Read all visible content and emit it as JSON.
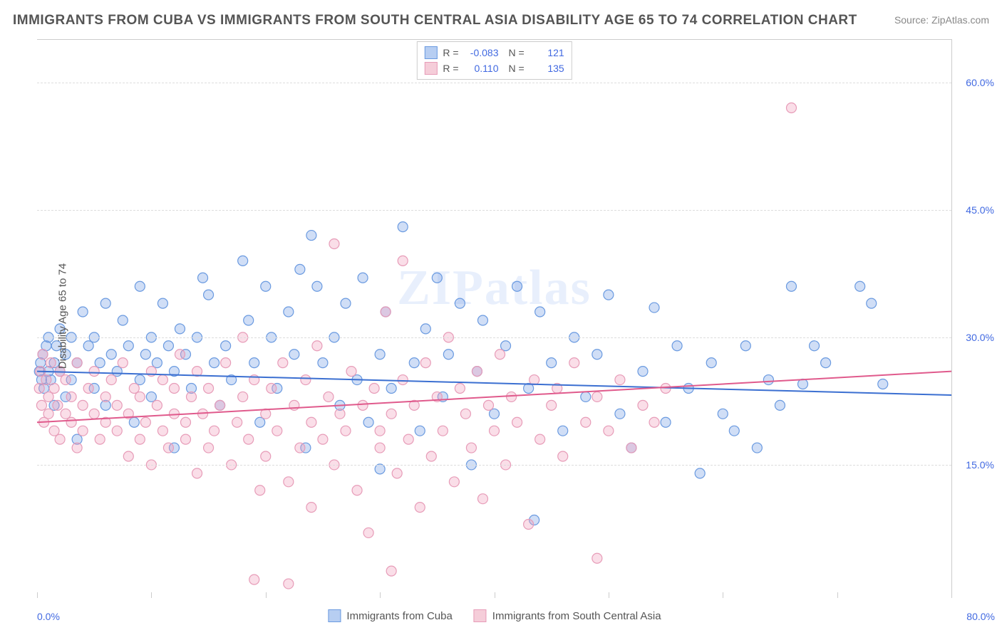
{
  "title": "IMMIGRANTS FROM CUBA VS IMMIGRANTS FROM SOUTH CENTRAL ASIA DISABILITY AGE 65 TO 74 CORRELATION CHART",
  "source": "Source: ZipAtlas.com",
  "watermark": "ZIPatlas",
  "chart": {
    "type": "scatter",
    "ylabel": "Disability Age 65 to 74",
    "xlim": [
      0,
      80
    ],
    "ylim": [
      0,
      65
    ],
    "xtick_min_label": "0.0%",
    "xtick_max_label": "80.0%",
    "yticks": [
      {
        "v": 15,
        "label": "15.0%"
      },
      {
        "v": 30,
        "label": "30.0%"
      },
      {
        "v": 45,
        "label": "45.0%"
      },
      {
        "v": 60,
        "label": "60.0%"
      }
    ],
    "xtick_positions": [
      0,
      10,
      20,
      30,
      40,
      50,
      60,
      70,
      80
    ],
    "marker_radius": 7,
    "marker_stroke_width": 1.2,
    "trend_line_width": 2,
    "series": [
      {
        "name": "Immigrants from Cuba",
        "fill": "rgba(120,160,230,0.35)",
        "stroke": "#6a9ae0",
        "swatch_fill": "#b7cef2",
        "swatch_stroke": "#6a9ae0",
        "r": "-0.083",
        "n": "121",
        "trend": {
          "y0": 26.0,
          "y1": 23.2,
          "color": "#3b6fd1"
        },
        "points": [
          [
            0.2,
            26
          ],
          [
            0.3,
            27
          ],
          [
            0.4,
            25
          ],
          [
            0.5,
            28
          ],
          [
            0.6,
            24
          ],
          [
            0.8,
            29
          ],
          [
            1,
            26
          ],
          [
            1,
            30
          ],
          [
            1.2,
            25
          ],
          [
            1.5,
            27
          ],
          [
            1.5,
            22
          ],
          [
            1.7,
            29
          ],
          [
            2,
            26
          ],
          [
            2,
            31
          ],
          [
            2.5,
            28
          ],
          [
            2.5,
            23
          ],
          [
            3,
            25
          ],
          [
            3,
            30
          ],
          [
            3.5,
            27
          ],
          [
            3.5,
            18
          ],
          [
            4,
            33
          ],
          [
            4.5,
            29
          ],
          [
            5,
            24
          ],
          [
            5,
            30
          ],
          [
            5.5,
            27
          ],
          [
            6,
            34
          ],
          [
            6,
            22
          ],
          [
            6.5,
            28
          ],
          [
            7,
            26
          ],
          [
            7.5,
            32
          ],
          [
            8,
            29
          ],
          [
            8.5,
            20
          ],
          [
            9,
            36
          ],
          [
            9,
            25
          ],
          [
            9.5,
            28
          ],
          [
            10,
            30
          ],
          [
            10,
            23
          ],
          [
            10.5,
            27
          ],
          [
            11,
            34
          ],
          [
            11.5,
            29
          ],
          [
            12,
            17
          ],
          [
            12,
            26
          ],
          [
            12.5,
            31
          ],
          [
            13,
            28
          ],
          [
            13.5,
            24
          ],
          [
            14,
            30
          ],
          [
            14.5,
            37
          ],
          [
            15,
            35
          ],
          [
            15.5,
            27
          ],
          [
            16,
            22
          ],
          [
            16.5,
            29
          ],
          [
            17,
            25
          ],
          [
            18,
            39
          ],
          [
            18.5,
            32
          ],
          [
            19,
            27
          ],
          [
            19.5,
            20
          ],
          [
            20,
            36
          ],
          [
            20.5,
            30
          ],
          [
            21,
            24
          ],
          [
            22,
            33
          ],
          [
            22.5,
            28
          ],
          [
            23,
            38
          ],
          [
            23.5,
            17
          ],
          [
            24,
            42
          ],
          [
            24.5,
            36
          ],
          [
            25,
            27
          ],
          [
            26,
            30
          ],
          [
            26.5,
            22
          ],
          [
            27,
            34
          ],
          [
            28,
            25
          ],
          [
            28.5,
            37
          ],
          [
            29,
            20
          ],
          [
            30,
            28
          ],
          [
            30,
            14.5
          ],
          [
            30.5,
            33
          ],
          [
            31,
            24
          ],
          [
            32,
            43
          ],
          [
            33,
            27
          ],
          [
            33.5,
            19
          ],
          [
            34,
            31
          ],
          [
            35,
            37
          ],
          [
            35.5,
            23
          ],
          [
            36,
            28
          ],
          [
            37,
            34
          ],
          [
            38,
            15
          ],
          [
            38.5,
            26
          ],
          [
            39,
            32
          ],
          [
            40,
            21
          ],
          [
            41,
            29
          ],
          [
            42,
            36
          ],
          [
            43,
            24
          ],
          [
            43.5,
            8.5
          ],
          [
            44,
            33
          ],
          [
            45,
            27
          ],
          [
            46,
            19
          ],
          [
            47,
            30
          ],
          [
            48,
            23
          ],
          [
            49,
            28
          ],
          [
            50,
            35
          ],
          [
            51,
            21
          ],
          [
            52,
            17
          ],
          [
            53,
            26
          ],
          [
            54,
            33.5
          ],
          [
            55,
            20
          ],
          [
            56,
            29
          ],
          [
            57,
            24
          ],
          [
            58,
            14
          ],
          [
            59,
            27
          ],
          [
            60,
            21
          ],
          [
            61,
            19
          ],
          [
            62,
            29
          ],
          [
            63,
            17
          ],
          [
            64,
            25
          ],
          [
            65,
            22
          ],
          [
            66,
            36
          ],
          [
            67,
            24.5
          ],
          [
            68,
            29
          ],
          [
            69,
            27
          ],
          [
            72,
            36
          ],
          [
            73,
            34
          ],
          [
            74,
            24.5
          ]
        ]
      },
      {
        "name": "Immigrants from South Central Asia",
        "fill": "rgba(240,160,190,0.35)",
        "stroke": "#e79cb8",
        "swatch_fill": "#f5cdd9",
        "swatch_stroke": "#e79cb8",
        "r": "0.110",
        "n": "135",
        "trend": {
          "y0": 20.0,
          "y1": 26.0,
          "color": "#e05a8c"
        },
        "points": [
          [
            0.2,
            24
          ],
          [
            0.3,
            26
          ],
          [
            0.4,
            22
          ],
          [
            0.5,
            28
          ],
          [
            0.6,
            20
          ],
          [
            0.8,
            25
          ],
          [
            1,
            23
          ],
          [
            1,
            21
          ],
          [
            1.2,
            27
          ],
          [
            1.5,
            19
          ],
          [
            1.5,
            24
          ],
          [
            1.8,
            22
          ],
          [
            2,
            26
          ],
          [
            2,
            18
          ],
          [
            2.5,
            21
          ],
          [
            2.5,
            25
          ],
          [
            3,
            20
          ],
          [
            3,
            23
          ],
          [
            3.5,
            27
          ],
          [
            3.5,
            17
          ],
          [
            4,
            22
          ],
          [
            4,
            19
          ],
          [
            4.5,
            24
          ],
          [
            5,
            21
          ],
          [
            5,
            26
          ],
          [
            5.5,
            18
          ],
          [
            6,
            23
          ],
          [
            6,
            20
          ],
          [
            6.5,
            25
          ],
          [
            7,
            19
          ],
          [
            7,
            22
          ],
          [
            7.5,
            27
          ],
          [
            8,
            16
          ],
          [
            8,
            21
          ],
          [
            8.5,
            24
          ],
          [
            9,
            18
          ],
          [
            9,
            23
          ],
          [
            9.5,
            20
          ],
          [
            10,
            26
          ],
          [
            10,
            15
          ],
          [
            10.5,
            22
          ],
          [
            11,
            19
          ],
          [
            11,
            25
          ],
          [
            11.5,
            17
          ],
          [
            12,
            21
          ],
          [
            12,
            24
          ],
          [
            12.5,
            28
          ],
          [
            13,
            18
          ],
          [
            13,
            20
          ],
          [
            13.5,
            23
          ],
          [
            14,
            14
          ],
          [
            14,
            26
          ],
          [
            14.5,
            21
          ],
          [
            15,
            17
          ],
          [
            15,
            24
          ],
          [
            15.5,
            19
          ],
          [
            16,
            22
          ],
          [
            16.5,
            27
          ],
          [
            17,
            15
          ],
          [
            17.5,
            20
          ],
          [
            18,
            30
          ],
          [
            18,
            23
          ],
          [
            18.5,
            18
          ],
          [
            19,
            25
          ],
          [
            19.5,
            12
          ],
          [
            20,
            21
          ],
          [
            20,
            16
          ],
          [
            20.5,
            24
          ],
          [
            21,
            19
          ],
          [
            21.5,
            27
          ],
          [
            22,
            13
          ],
          [
            22.5,
            22
          ],
          [
            23,
            17
          ],
          [
            23.5,
            25
          ],
          [
            24,
            20
          ],
          [
            24,
            10
          ],
          [
            24.5,
            29
          ],
          [
            25,
            18
          ],
          [
            25.5,
            23
          ],
          [
            26,
            15
          ],
          [
            26,
            41
          ],
          [
            26.5,
            21
          ],
          [
            27,
            19
          ],
          [
            27.5,
            26
          ],
          [
            28,
            12
          ],
          [
            28.5,
            22
          ],
          [
            29,
            7
          ],
          [
            29.5,
            24
          ],
          [
            30,
            17
          ],
          [
            30,
            19
          ],
          [
            30.5,
            33
          ],
          [
            31,
            21
          ],
          [
            31.5,
            14
          ],
          [
            32,
            39
          ],
          [
            32,
            25
          ],
          [
            32.5,
            18
          ],
          [
            33,
            22
          ],
          [
            33.5,
            10
          ],
          [
            34,
            27
          ],
          [
            34.5,
            16
          ],
          [
            35,
            23
          ],
          [
            35.5,
            19
          ],
          [
            36,
            30
          ],
          [
            36.5,
            13
          ],
          [
            37,
            24
          ],
          [
            37.5,
            21
          ],
          [
            38,
            17
          ],
          [
            38.5,
            26
          ],
          [
            39,
            11
          ],
          [
            39.5,
            22
          ],
          [
            40,
            19
          ],
          [
            40.5,
            28
          ],
          [
            41,
            15
          ],
          [
            41.5,
            23
          ],
          [
            42,
            20
          ],
          [
            43,
            8
          ],
          [
            43.5,
            25
          ],
          [
            44,
            18
          ],
          [
            45,
            22
          ],
          [
            45.5,
            24
          ],
          [
            46,
            16
          ],
          [
            47,
            27
          ],
          [
            48,
            20
          ],
          [
            49,
            23
          ],
          [
            49,
            4
          ],
          [
            50,
            19
          ],
          [
            51,
            25
          ],
          [
            52,
            17
          ],
          [
            53,
            22
          ],
          [
            54,
            20
          ],
          [
            55,
            24
          ],
          [
            66,
            57
          ],
          [
            19,
            1.5
          ],
          [
            22,
            1
          ],
          [
            31,
            2.5
          ]
        ]
      }
    ]
  }
}
